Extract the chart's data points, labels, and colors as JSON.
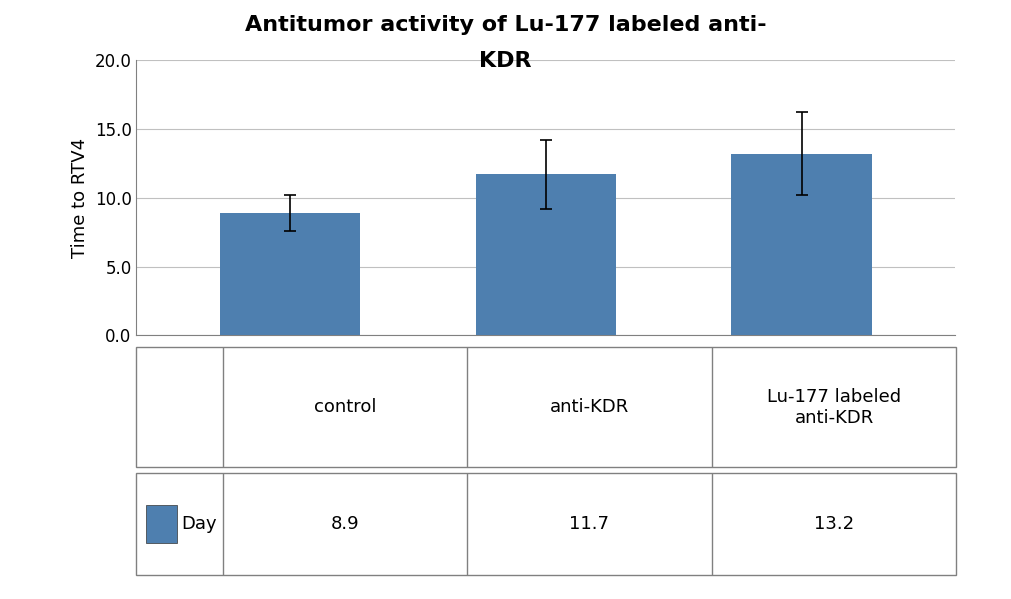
{
  "title_line1": "Antitumor activity of Lu-177 labeled anti-",
  "title_line2": "KDR",
  "ylabel": "Time to RTV4",
  "categories": [
    "control",
    "anti-KDR",
    "Lu-177 labeled\nanti-KDR"
  ],
  "values": [
    8.9,
    11.7,
    13.2
  ],
  "errors": [
    1.3,
    2.5,
    3.0
  ],
  "bar_color": "#4e7faf",
  "ylim": [
    0,
    20
  ],
  "yticks": [
    0.0,
    5.0,
    10.0,
    15.0,
    20.0
  ],
  "table_values": [
    "8.9",
    "11.7",
    "13.2"
  ],
  "legend_label": "Day",
  "background_color": "#ffffff",
  "title_fontsize": 16,
  "axis_label_fontsize": 13,
  "tick_fontsize": 12,
  "table_fontsize": 13
}
